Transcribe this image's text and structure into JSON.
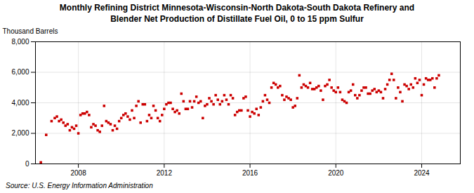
{
  "chart_data": {
    "type": "scatter",
    "title": "Monthly Refining District Minnesota-Wisconsin-North Dakota-South Dakota Refinery and\nBlender Net Production of Distillate Fuel Oil, 0 to 15 ppm Sulfur",
    "ylabel": "Thousand Barrels",
    "source": "Source: U.S. Energy Information Administration",
    "color": "#cc0000",
    "marker": "square",
    "grid": true,
    "xlim": [
      2006.0,
      2025.8
    ],
    "xticks": [
      2008,
      2012,
      2016,
      2020,
      2024
    ],
    "ylim": [
      0,
      8000
    ],
    "yticks": [
      0,
      {
        "value": 2000,
        "label": "2,000"
      },
      {
        "value": 4000,
        "label": "4,000"
      },
      {
        "value": 6000,
        "label": "6,000"
      },
      {
        "value": 8000,
        "label": "8,000"
      }
    ],
    "x": [
      2006.25,
      2006.5,
      2006.75,
      2006.9,
      2007.0,
      2007.1,
      2007.2,
      2007.3,
      2007.4,
      2007.5,
      2007.6,
      2007.7,
      2007.8,
      2007.9,
      2008.0,
      2008.1,
      2008.2,
      2008.3,
      2008.4,
      2008.5,
      2008.6,
      2008.7,
      2008.8,
      2008.9,
      2009.0,
      2009.1,
      2009.2,
      2009.3,
      2009.4,
      2009.5,
      2009.6,
      2009.7,
      2009.8,
      2009.9,
      2010.0,
      2010.1,
      2010.2,
      2010.3,
      2010.4,
      2010.5,
      2010.6,
      2010.7,
      2010.8,
      2010.9,
      2011.0,
      2011.1,
      2011.2,
      2011.3,
      2011.4,
      2011.5,
      2011.6,
      2011.7,
      2011.8,
      2011.9,
      2012.0,
      2012.1,
      2012.2,
      2012.3,
      2012.4,
      2012.5,
      2012.6,
      2012.7,
      2012.8,
      2012.9,
      2013.0,
      2013.1,
      2013.2,
      2013.3,
      2013.4,
      2013.5,
      2013.6,
      2013.7,
      2013.8,
      2013.9,
      2014.0,
      2014.1,
      2014.2,
      2014.3,
      2014.4,
      2014.5,
      2014.6,
      2014.7,
      2014.8,
      2014.9,
      2015.0,
      2015.1,
      2015.2,
      2015.3,
      2015.4,
      2015.5,
      2015.6,
      2015.7,
      2015.8,
      2015.9,
      2016.0,
      2016.1,
      2016.2,
      2016.3,
      2016.4,
      2016.5,
      2016.6,
      2016.7,
      2016.8,
      2016.9,
      2017.0,
      2017.1,
      2017.2,
      2017.3,
      2017.4,
      2017.5,
      2017.6,
      2017.7,
      2017.8,
      2017.9,
      2018.0,
      2018.1,
      2018.2,
      2018.3,
      2018.4,
      2018.5,
      2018.6,
      2018.7,
      2018.8,
      2018.9,
      2019.0,
      2019.1,
      2019.2,
      2019.3,
      2019.4,
      2019.5,
      2019.6,
      2019.7,
      2019.8,
      2019.9,
      2020.0,
      2020.1,
      2020.2,
      2020.3,
      2020.4,
      2020.5,
      2020.6,
      2020.7,
      2020.8,
      2020.9,
      2021.0,
      2021.1,
      2021.2,
      2021.3,
      2021.4,
      2021.5,
      2021.6,
      2021.7,
      2021.8,
      2021.9,
      2022.0,
      2022.1,
      2022.2,
      2022.3,
      2022.4,
      2022.5,
      2022.6,
      2022.7,
      2022.8,
      2022.9,
      2023.0,
      2023.1,
      2023.2,
      2023.3,
      2023.4,
      2023.5,
      2023.6,
      2023.7,
      2023.8,
      2023.9,
      2024.0,
      2024.1,
      2024.2,
      2024.3,
      2024.4,
      2024.5,
      2024.6,
      2024.7,
      2024.8
    ],
    "values": [
      100,
      1900,
      2800,
      3000,
      3100,
      2800,
      2900,
      2700,
      2500,
      2600,
      2200,
      2400,
      2300,
      2500,
      2000,
      3200,
      3300,
      3300,
      3400,
      3200,
      2400,
      2600,
      2500,
      2200,
      2100,
      2500,
      3800,
      2800,
      2700,
      2600,
      2200,
      2500,
      2300,
      2800,
      3000,
      3200,
      3300,
      3100,
      2900,
      3500,
      3000,
      3800,
      4100,
      2700,
      3900,
      3900,
      2800,
      3200,
      3000,
      3800,
      3500,
      3000,
      2800,
      3200,
      3600,
      3900,
      4000,
      4000,
      3600,
      3400,
      3500,
      3300,
      4600,
      4100,
      3600,
      3600,
      4100,
      3700,
      4100,
      4400,
      4000,
      4100,
      3000,
      3800,
      3900,
      4300,
      4100,
      3900,
      4500,
      4200,
      3900,
      4100,
      4500,
      4200,
      3900,
      4500,
      4300,
      3200,
      3400,
      3500,
      3500,
      4300,
      4400,
      3500,
      3100,
      3400,
      3300,
      3600,
      3200,
      3700,
      4100,
      4500,
      4200,
      4000,
      5000,
      5300,
      5200,
      5000,
      5100,
      4500,
      4200,
      4400,
      4300,
      4200,
      3700,
      3800,
      4300,
      5800,
      5000,
      5200,
      5100,
      5000,
      5300,
      4900,
      4900,
      5000,
      5100,
      4800,
      4200,
      5100,
      5200,
      5500,
      5000,
      4800,
      4700,
      5000,
      4700,
      4200,
      4100,
      4000,
      4700,
      4800,
      5200,
      4500,
      4300,
      4500,
      4800,
      5000,
      5000,
      4600,
      4600,
      4800,
      4900,
      4700,
      4800,
      4700,
      4300,
      4900,
      5200,
      5500,
      5900,
      5500,
      4300,
      5000,
      4700,
      4100,
      5200,
      5100,
      4900,
      5200,
      5000,
      5600,
      5300,
      5500,
      4500,
      5200,
      5600,
      5500,
      5500,
      5600,
      5000,
      5600,
      5800
    ]
  }
}
